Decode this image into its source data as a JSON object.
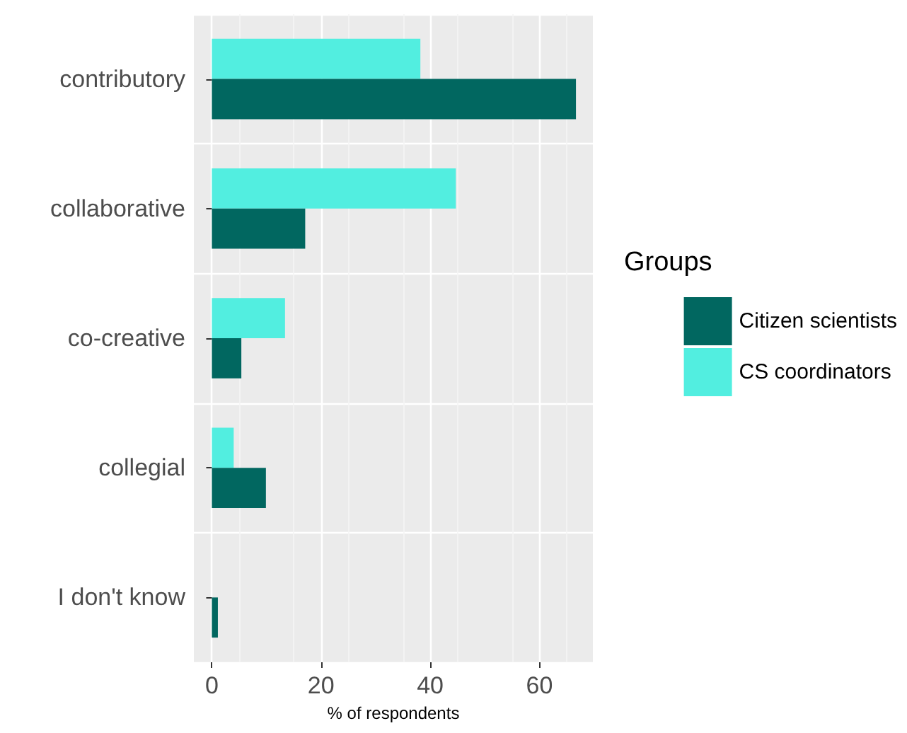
{
  "chart_data": {
    "type": "bar",
    "orientation": "horizontal",
    "categories": [
      "contributory",
      "collaborative",
      "co-creative",
      "collegial",
      "I don't know"
    ],
    "series": [
      {
        "name": "Citizen scientists",
        "color": "#016760",
        "values": [
          66.7,
          17.1,
          5.4,
          9.9,
          1.1
        ]
      },
      {
        "name": "CS coordinators",
        "color": "#52eee0",
        "values": [
          38.2,
          44.7,
          13.4,
          4.0,
          0
        ]
      }
    ],
    "xlabel": "% of respondents",
    "legend_title": "Groups",
    "legend": "right",
    "xlim": [
      -3.3,
      69.8
    ],
    "xticks": [
      0,
      20,
      40,
      60
    ],
    "grid": true
  }
}
